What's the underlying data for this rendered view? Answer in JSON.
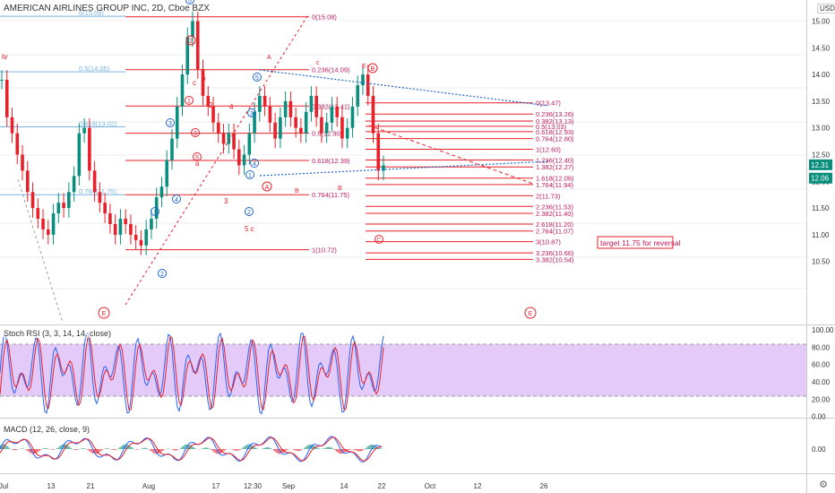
{
  "header": {
    "title": "AMERICAN AIRLINES GROUP INC, 2D, Cboe BZX",
    "currency": "USD",
    "corner_label": "iv"
  },
  "colors": {
    "fib_line": "#e8202a",
    "fib_text": "#c2185b",
    "blue_fib": "#7ab3e0",
    "candle_up": "#0a8f7e",
    "candle_down": "#e8202a",
    "trend_dotted": "#1e64c8",
    "stoch_band": "#d9b8f5",
    "stoch_k": "#2962ff",
    "stoch_d": "#e8202a",
    "macd": "#2962ff",
    "signal": "#e8202a",
    "price_badge": "#0a8f7e",
    "grid": "#eeeeee"
  },
  "price_axis": {
    "ticks": [
      "15.00",
      "14.50",
      "14.00",
      "13.50",
      "13.00",
      "12.50",
      "12.00",
      "11.50",
      "11.00",
      "10.50"
    ],
    "badges": [
      "12.31",
      "12.06"
    ]
  },
  "time_axis": {
    "ticks": [
      "Jul",
      "13",
      "21",
      "Aug",
      "17",
      "12:30",
      "Sep",
      "14",
      "22",
      "Oct",
      "12",
      "26"
    ]
  },
  "fib_left": [
    {
      "label": "0(15.08)",
      "price": 15.08
    },
    {
      "label": "0.236(14.09)",
      "price": 14.09
    },
    {
      "label": "0.382(13.41)",
      "price": 13.41
    },
    {
      "label": "0.5(12.90)",
      "price": 12.9
    },
    {
      "label": "0.618(12.39)",
      "price": 12.39
    },
    {
      "label": "0.764(11.75)",
      "price": 11.75
    },
    {
      "label": "1(10.72)",
      "price": 10.72
    }
  ],
  "fib_blue": [
    {
      "label": "0(15.09)",
      "price": 15.09
    },
    {
      "label": "0.5(14.05)",
      "price": 14.05
    },
    {
      "label": "0.618(13.02)",
      "price": 13.02
    },
    {
      "label": "0.764(11.75)",
      "price": 11.75
    }
  ],
  "fib_right": [
    {
      "label": "0(13.47)",
      "price": 13.47
    },
    {
      "label": "0.236(13.26)",
      "price": 13.26
    },
    {
      "label": "0.382(13.13)",
      "price": 13.13
    },
    {
      "label": "0.5(13.03)",
      "price": 13.03
    },
    {
      "label": "0.618(12.93)",
      "price": 12.93
    },
    {
      "label": "0.764(12.80)",
      "price": 12.8
    },
    {
      "label": "1(12.60)",
      "price": 12.6
    },
    {
      "label": "1.236(12.40)",
      "price": 12.4
    },
    {
      "label": "1.382(12.27)",
      "price": 12.27
    },
    {
      "label": "1.618(12.06)",
      "price": 12.06
    },
    {
      "label": "1.764(11.94)",
      "price": 11.94
    },
    {
      "label": "2(11.73)",
      "price": 11.73
    },
    {
      "label": "2.236(11.53)",
      "price": 11.53
    },
    {
      "label": "2.382(11.40)",
      "price": 11.4
    },
    {
      "label": "2.618(11.20)",
      "price": 11.2
    },
    {
      "label": "2.764(11.07)",
      "price": 11.07
    },
    {
      "label": "3(10.87)",
      "price": 10.87
    },
    {
      "label": "3.236(10.66)",
      "price": 10.66
    },
    {
      "label": "3.382(10.54)",
      "price": 10.54
    }
  ],
  "annotation_box": "target 11.75 for reversal",
  "wave_labels": {
    "circled_red": [
      "2",
      "1",
      "3",
      "5",
      "A",
      "E",
      "E",
      "C"
    ],
    "circled_blue": [
      "1",
      "2",
      "3",
      "4",
      "5",
      "1",
      "2",
      "3",
      "4",
      "5",
      "B"
    ],
    "plain": [
      "a",
      "b",
      "c",
      "2",
      "4",
      "3",
      "5 c",
      "A",
      "c",
      "E",
      "B",
      "B"
    ]
  },
  "stoch_rsi": {
    "label": "Stoch RSI (3, 3, 14, 14, close)",
    "ticks": [
      "100.00",
      "80.00",
      "60.00",
      "40.00",
      "20.00",
      "0.00"
    ],
    "upper": 80,
    "lower": 20
  },
  "macd": {
    "label": "MACD (12, 26, close, 9)",
    "ticks": [
      "0.00"
    ]
  },
  "chart_data": {
    "type": "candlestick",
    "title": "AMERICAN AIRLINES GROUP INC, 2D, Cboe BZX",
    "ylim": [
      10.45,
      15.4
    ],
    "close_series": [
      13.9,
      13.2,
      12.9,
      12.5,
      12.2,
      11.8,
      11.5,
      11.3,
      11.1,
      11.0,
      11.4,
      11.6,
      11.5,
      11.8,
      12.1,
      12.9,
      13.0,
      12.2,
      11.8,
      11.6,
      11.4,
      11.2,
      11.0,
      11.3,
      11.2,
      11.0,
      10.9,
      10.8,
      11.1,
      11.3,
      11.7,
      11.9,
      12.4,
      12.8,
      13.4,
      14.0,
      14.7,
      15.0,
      14.1,
      13.6,
      13.4,
      13.1,
      12.9,
      12.7,
      12.9,
      12.6,
      12.3,
      12.5,
      12.9,
      13.3,
      13.6,
      13.4,
      13.1,
      12.8,
      13.2,
      13.5,
      13.2,
      13.0,
      12.9,
      13.3,
      13.6,
      13.2,
      12.9,
      13.1,
      13.4,
      13.2,
      12.8,
      13.0,
      13.4,
      13.8,
      14.0,
      13.6,
      12.9,
      12.2,
      12.3
    ]
  }
}
